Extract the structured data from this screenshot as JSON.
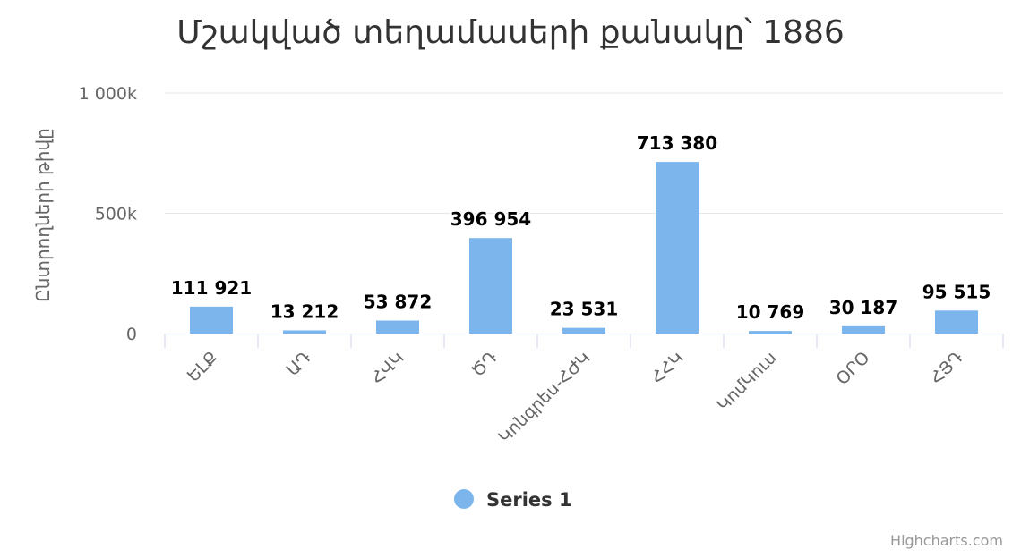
{
  "chart_data": {
    "type": "bar",
    "title": "Մշակված տեղամասերի քանակը՝ 1886",
    "ylabel": "Ընտրողների թիվը",
    "xlabel": "",
    "ylim": [
      0,
      1000000
    ],
    "yticks": [
      {
        "value": 0,
        "label": "0"
      },
      {
        "value": 500000,
        "label": "500k"
      },
      {
        "value": 1000000,
        "label": "1 000k"
      }
    ],
    "categories": [
      "ԵԼՔ",
      "ԱԴ",
      "ՀՎԿ",
      "ԾԴ",
      "Կոնգրես-ՀԺԿ",
      "ՀՀԿ",
      "ԿոմԿուս",
      "ՕՐՕ",
      "ՀՅԴ"
    ],
    "series": [
      {
        "name": "Series 1",
        "color": "#7cb5ec",
        "values": [
          111921,
          13212,
          53872,
          396954,
          23531,
          713380,
          10769,
          30187,
          95515
        ],
        "labels": [
          "111 921",
          "13 212",
          "53 872",
          "396 954",
          "23 531",
          "713 380",
          "10 769",
          "30 187",
          "95 515"
        ]
      }
    ],
    "grid": true,
    "legend": "bottom-center"
  },
  "credits": "Highcharts.com"
}
